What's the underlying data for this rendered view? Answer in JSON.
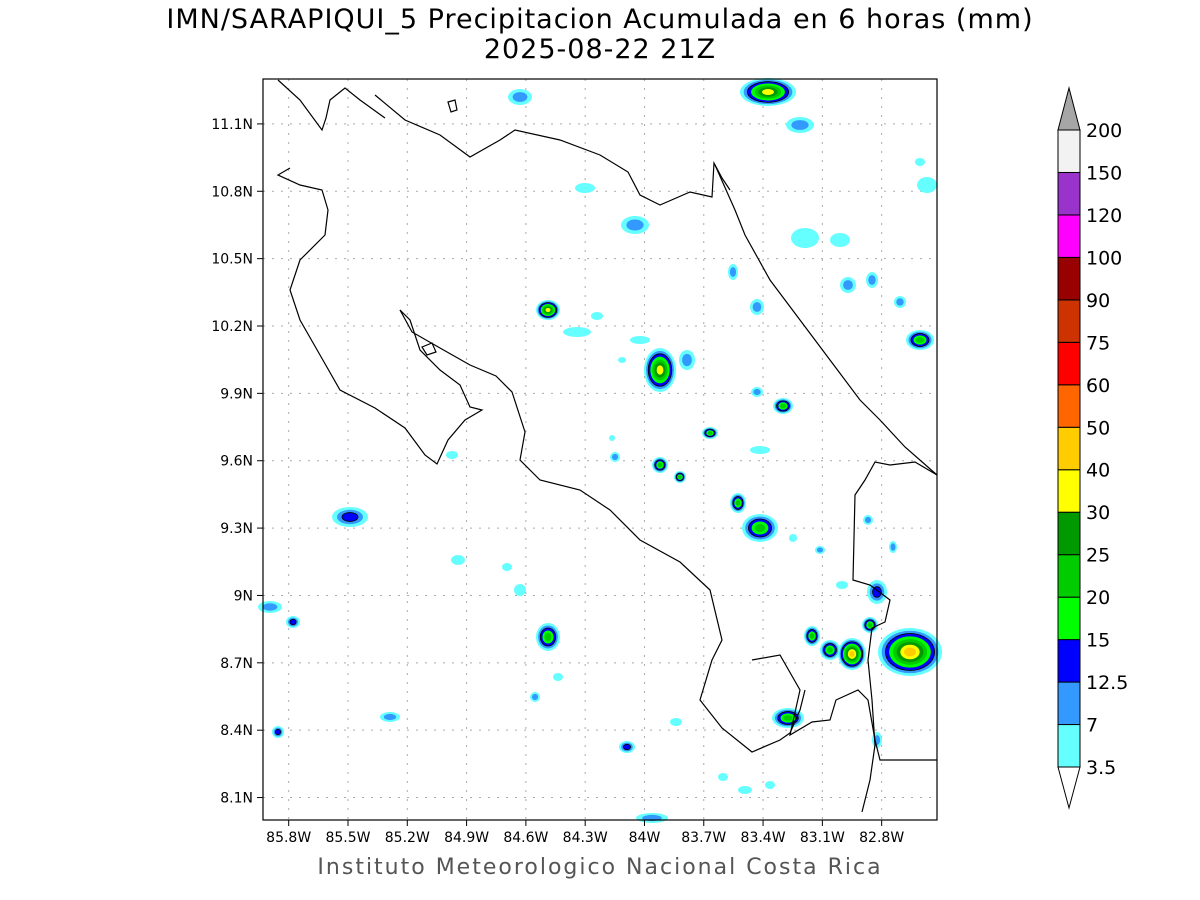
{
  "title": "IMN/SARAPIQUI_5 Precipitacion Acumulada en 6 horas (mm)",
  "subtitle": "2025-08-22 21Z",
  "footer": "Instituto Meteorologico Nacional Costa Rica",
  "map": {
    "lon_range": [
      -85.93,
      -82.52
    ],
    "lat_range": [
      8.0,
      11.3
    ],
    "lon_ticks": [
      {
        "value": -85.8,
        "label": "85.8W"
      },
      {
        "value": -85.5,
        "label": "85.5W"
      },
      {
        "value": -85.2,
        "label": "85.2W"
      },
      {
        "value": -84.9,
        "label": "84.9W"
      },
      {
        "value": -84.6,
        "label": "84.6W"
      },
      {
        "value": -84.3,
        "label": "84.3W"
      },
      {
        "value": -84.0,
        "label": "84W"
      },
      {
        "value": -83.7,
        "label": "83.7W"
      },
      {
        "value": -83.4,
        "label": "83.4W"
      },
      {
        "value": -83.1,
        "label": "83.1W"
      },
      {
        "value": -82.8,
        "label": "82.8W"
      }
    ],
    "lat_ticks": [
      {
        "value": 11.1,
        "label": "11.1N"
      },
      {
        "value": 10.8,
        "label": "10.8N"
      },
      {
        "value": 10.5,
        "label": "10.5N"
      },
      {
        "value": 10.2,
        "label": "10.2N"
      },
      {
        "value": 9.9,
        "label": "9.9N"
      },
      {
        "value": 9.6,
        "label": "9.6N"
      },
      {
        "value": 9.3,
        "label": "9.3N"
      },
      {
        "value": 9.0,
        "label": "9N"
      },
      {
        "value": 8.7,
        "label": "8.7N"
      },
      {
        "value": 8.4,
        "label": "8.4N"
      },
      {
        "value": 8.1,
        "label": "8.1N"
      }
    ]
  },
  "colorbar": {
    "labels": [
      "3.5",
      "7",
      "12.5",
      "15",
      "20",
      "25",
      "30",
      "40",
      "50",
      "60",
      "75",
      "90",
      "100",
      "120",
      "150",
      "200"
    ],
    "colors": [
      "#66ffff",
      "#3399ff",
      "#0000ff",
      "#00ff00",
      "#00cc00",
      "#009900",
      "#ffff00",
      "#ffcc00",
      "#ff6600",
      "#ff0000",
      "#cc3300",
      "#990000",
      "#ff00ff",
      "#9933cc",
      "#f2f2f2"
    ],
    "over_color": "#a6a6a6",
    "under_color": "#ffffff"
  }
}
